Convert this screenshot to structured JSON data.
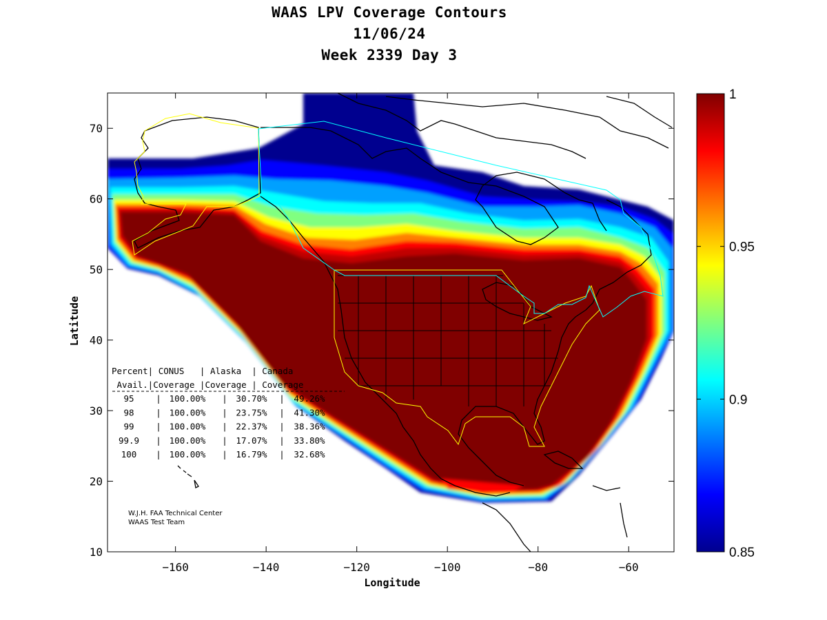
{
  "title": {
    "line1": "WAAS LPV Coverage Contours",
    "line2": "11/06/24",
    "line3": "Week 2339 Day 3"
  },
  "axes": {
    "xlabel": "Longitude",
    "ylabel": "Latitude",
    "xlim": [
      -175,
      -50
    ],
    "ylim": [
      10,
      75
    ],
    "xticks": [
      -160,
      -140,
      -120,
      -100,
      -80,
      -60
    ],
    "yticks": [
      10,
      20,
      30,
      40,
      50,
      60,
      70
    ]
  },
  "colorbar": {
    "min": 0.85,
    "max": 1,
    "ticks": [
      "1",
      "0.95",
      "0.9",
      "0.85"
    ],
    "tick_values": [
      1,
      0.95,
      0.9,
      0.85
    ],
    "colormap": "jet",
    "colors": [
      "#00008f",
      "#0000ff",
      "#00ffff",
      "#ffff00",
      "#ff0000",
      "#800000"
    ]
  },
  "table": {
    "header1": "Percent| CONUS   | Alaska  | Canada",
    "header2": " Avail.|Coverage |Coverage | Coverage",
    "divider": "-----------------------------------------",
    "columns": [
      "Percent Avail.",
      "CONUS Coverage",
      "Alaska Coverage",
      "Canada Coverage"
    ],
    "rows": [
      {
        "avail": "95",
        "conus": "100.00%",
        "alaska": "30.70%",
        "canada": "49.26%"
      },
      {
        "avail": "98",
        "conus": "100.00%",
        "alaska": "23.75%",
        "canada": "41.30%"
      },
      {
        "avail": "99",
        "conus": "100.00%",
        "alaska": "22.37%",
        "canada": "38.36%"
      },
      {
        "avail": "99.9",
        "conus": "100.00%",
        "alaska": "17.07%",
        "canada": "33.80%"
      },
      {
        "avail": "100",
        "conus": "100.00%",
        "alaska": "16.79%",
        "canada": "32.68%"
      }
    ]
  },
  "credit": {
    "line1": "W.J.H. FAA Technical Center",
    "line2": "WAAS Test Team"
  },
  "colors": {
    "service_boundary": "#ffff00",
    "canada_boundary": "#00ffff",
    "land_outline": "#000000"
  }
}
